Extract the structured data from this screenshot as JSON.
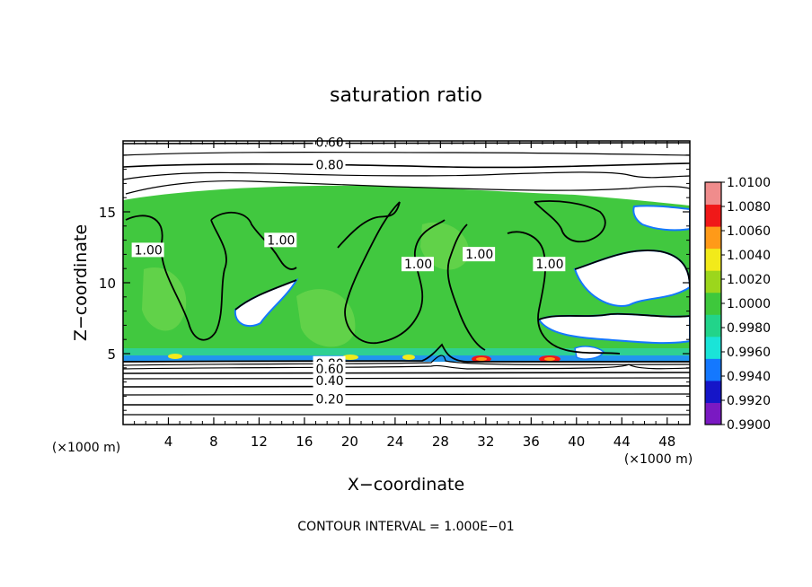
{
  "chart_data": {
    "type": "heatmap",
    "title": "saturation ratio",
    "xlabel": "X−coordinate",
    "ylabel": "Z−coordinate",
    "x_unit": "(×1000 m)",
    "y_unit": "(×1000 m)",
    "xlim": [
      0,
      50
    ],
    "ylim": [
      0,
      20
    ],
    "x_ticks": [
      4,
      8,
      12,
      16,
      20,
      24,
      28,
      32,
      36,
      40,
      44,
      48
    ],
    "y_ticks": [
      5,
      10,
      15
    ],
    "colorbar": {
      "levels": [
        "0.9900",
        "0.9920",
        "0.9940",
        "0.9960",
        "0.9980",
        "1.0000",
        "1.0020",
        "1.0040",
        "1.0060",
        "1.0080",
        "1.0100"
      ],
      "colors": [
        "#7a19c2",
        "#1515c8",
        "#1478ff",
        "#1ae4d8",
        "#22d48a",
        "#3ec83c",
        "#9cd61c",
        "#f2ea1a",
        "#ff9a18",
        "#f01818",
        "#f08c8c"
      ],
      "placement": "right"
    },
    "contour_labels": [
      {
        "text": "0.60",
        "x": 17.0,
        "z": 19.6
      },
      {
        "text": "0.80",
        "x": 17.0,
        "z": 18.0
      },
      {
        "text": "1.00",
        "x": 1.0,
        "z": 12.0
      },
      {
        "text": "1.00",
        "x": 12.7,
        "z": 12.7
      },
      {
        "text": "1.00",
        "x": 24.8,
        "z": 11.0
      },
      {
        "text": "1.00",
        "x": 30.2,
        "z": 11.7
      },
      {
        "text": "1.00",
        "x": 36.4,
        "z": 11.0
      },
      {
        "text": "0.80",
        "x": 17.0,
        "z": 4.0
      },
      {
        "text": "0.60",
        "x": 17.0,
        "z": 3.6
      },
      {
        "text": "0.40",
        "x": 17.0,
        "z": 2.8
      },
      {
        "text": "0.20",
        "x": 17.0,
        "z": 1.5
      }
    ],
    "annotation": "CONTOUR INTERVAL = 1.000E−01",
    "grid": false
  }
}
